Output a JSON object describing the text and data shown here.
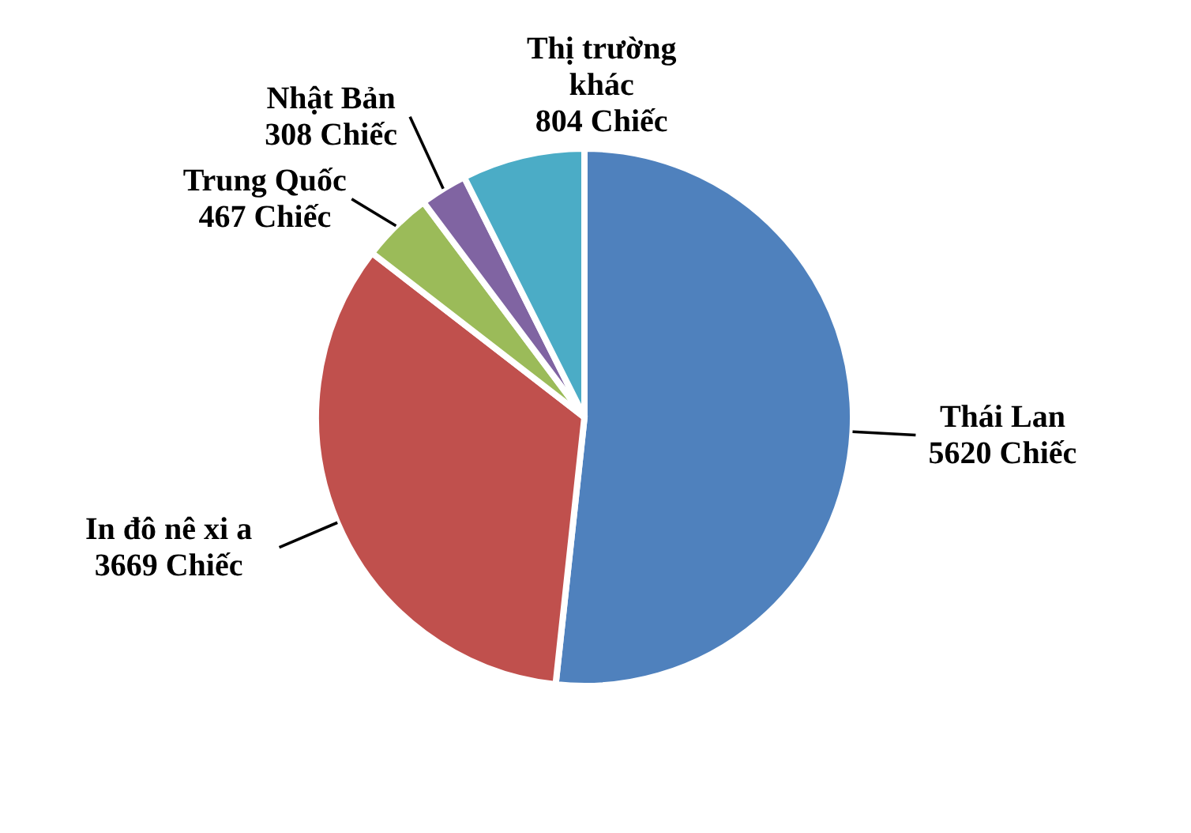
{
  "chart_data": {
    "type": "pie",
    "categories": [
      "Thái Lan",
      "In đô nê xi a",
      "Trung Quốc",
      "Nhật Bản",
      "Thị trường khác"
    ],
    "values": [
      5620,
      3669,
      467,
      308,
      804
    ],
    "colors": [
      "#4f81bd",
      "#c0504d",
      "#9bbb59",
      "#8064a2",
      "#4bacc6"
    ],
    "value_labels": [
      "5620 Chiếc",
      "3669 Chiếc",
      "467 Chiếc",
      "308 Chiếc",
      "804 Chiếc"
    ],
    "legend": false
  }
}
